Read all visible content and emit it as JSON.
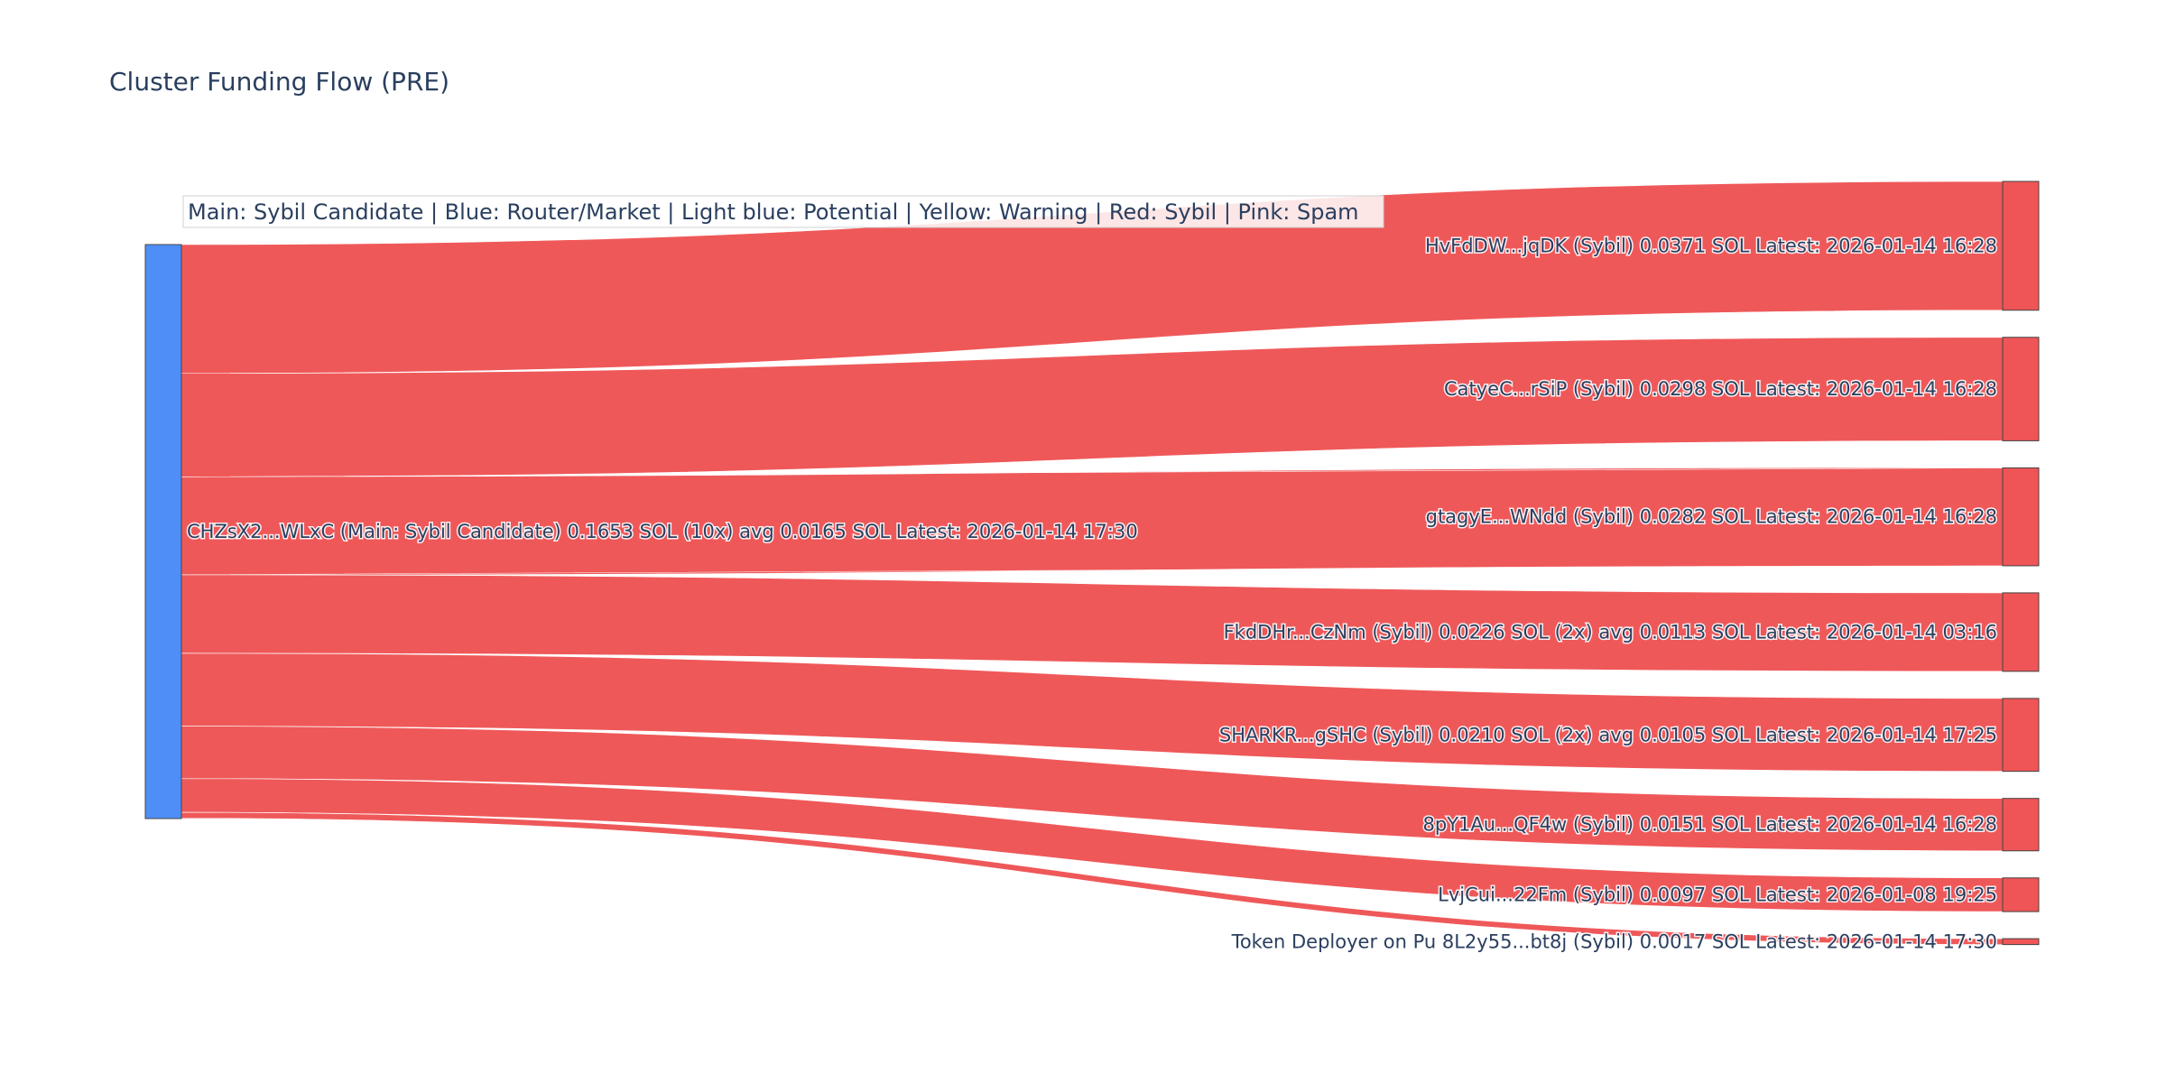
{
  "chart_data": {
    "type": "sankey",
    "title": "Cluster Funding Flow (PRE)",
    "legend_text": "Main: Sybil Candidate  |  Blue: Router/Market | Light blue: Potential | Yellow: Warning | Red: Sybil | Pink: Spam",
    "colors": {
      "source_node": "#4f8ef7",
      "target_node": "#ef5556",
      "link": "#ef5556",
      "node_border": "#444444"
    },
    "source": {
      "label": "CHZsX2...WLxC (Main: Sybil Candidate) 0.1653 SOL (10x) avg 0.0165 SOL Latest: 2026-01-14 17:30",
      "value": 0.1653
    },
    "targets": [
      {
        "label": "HvFdDW...jqDK (Sybil) 0.0371 SOL Latest: 2026-01-14 16:28",
        "value": 0.0371
      },
      {
        "label": "CatyeC...rSiP (Sybil) 0.0298 SOL Latest: 2026-01-14 16:28",
        "value": 0.0298
      },
      {
        "label": "gtagyE...WNdd (Sybil) 0.0282 SOL Latest: 2026-01-14 16:28",
        "value": 0.0282
      },
      {
        "label": "FkdDHr...CzNm (Sybil) 0.0226 SOL (2x) avg 0.0113 SOL Latest: 2026-01-14 03:16",
        "value": 0.0226
      },
      {
        "label": "SHARKR...gSHC (Sybil) 0.0210 SOL (2x) avg 0.0105 SOL Latest: 2026-01-14 17:25",
        "value": 0.021
      },
      {
        "label": "8pY1Au...QF4w (Sybil) 0.0151 SOL Latest: 2026-01-14 16:28",
        "value": 0.0151
      },
      {
        "label": "LvjCui...22Fm (Sybil) 0.0097 SOL Latest: 2026-01-08 19:25",
        "value": 0.0097
      },
      {
        "label": "Token Deployer on Pu 8L2y55...bt8j (Sybil) 0.0017 SOL Latest: 2026-01-14 17:30",
        "value": 0.0017
      }
    ]
  }
}
